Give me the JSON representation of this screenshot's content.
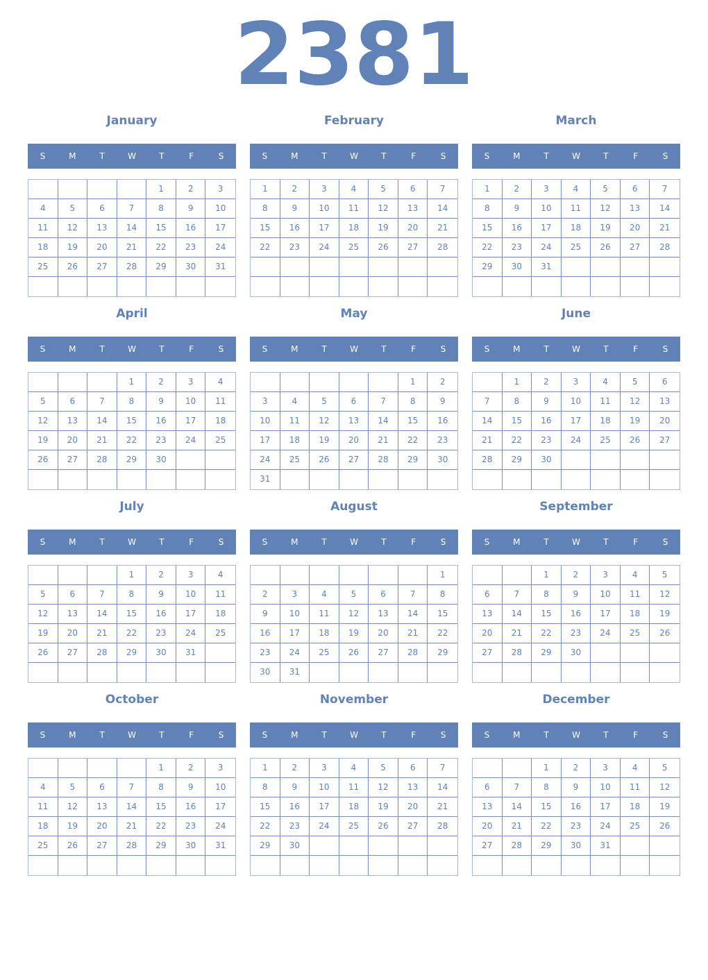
{
  "year": "2381",
  "weekdays": [
    "S",
    "M",
    "T",
    "W",
    "T",
    "F",
    "S"
  ],
  "accent_color": "#6182b7",
  "months": [
    {
      "name": "January",
      "weeks": [
        [
          null,
          null,
          null,
          null,
          1,
          2,
          3
        ],
        [
          4,
          5,
          6,
          7,
          8,
          9,
          10
        ],
        [
          11,
          12,
          13,
          14,
          15,
          16,
          17
        ],
        [
          18,
          19,
          20,
          21,
          22,
          23,
          24
        ],
        [
          25,
          26,
          27,
          28,
          29,
          30,
          31
        ],
        [
          null,
          null,
          null,
          null,
          null,
          null,
          null
        ]
      ]
    },
    {
      "name": "February",
      "weeks": [
        [
          1,
          2,
          3,
          4,
          5,
          6,
          7
        ],
        [
          8,
          9,
          10,
          11,
          12,
          13,
          14
        ],
        [
          15,
          16,
          17,
          18,
          19,
          20,
          21
        ],
        [
          22,
          23,
          24,
          25,
          26,
          27,
          28
        ],
        [
          null,
          null,
          null,
          null,
          null,
          null,
          null
        ],
        [
          null,
          null,
          null,
          null,
          null,
          null,
          null
        ]
      ]
    },
    {
      "name": "March",
      "weeks": [
        [
          1,
          2,
          3,
          4,
          5,
          6,
          7
        ],
        [
          8,
          9,
          10,
          11,
          12,
          13,
          14
        ],
        [
          15,
          16,
          17,
          18,
          19,
          20,
          21
        ],
        [
          22,
          23,
          24,
          25,
          26,
          27,
          28
        ],
        [
          29,
          30,
          31,
          null,
          null,
          null,
          null
        ],
        [
          null,
          null,
          null,
          null,
          null,
          null,
          null
        ]
      ]
    },
    {
      "name": "April",
      "weeks": [
        [
          null,
          null,
          null,
          1,
          2,
          3,
          4
        ],
        [
          5,
          6,
          7,
          8,
          9,
          10,
          11
        ],
        [
          12,
          13,
          14,
          15,
          16,
          17,
          18
        ],
        [
          19,
          20,
          21,
          22,
          23,
          24,
          25
        ],
        [
          26,
          27,
          28,
          29,
          30,
          null,
          null
        ],
        [
          null,
          null,
          null,
          null,
          null,
          null,
          null
        ]
      ]
    },
    {
      "name": "May",
      "weeks": [
        [
          null,
          null,
          null,
          null,
          null,
          1,
          2
        ],
        [
          3,
          4,
          5,
          6,
          7,
          8,
          9
        ],
        [
          10,
          11,
          12,
          13,
          14,
          15,
          16
        ],
        [
          17,
          18,
          19,
          20,
          21,
          22,
          23
        ],
        [
          24,
          25,
          26,
          27,
          28,
          29,
          30
        ],
        [
          31,
          null,
          null,
          null,
          null,
          null,
          null
        ]
      ]
    },
    {
      "name": "June",
      "weeks": [
        [
          null,
          1,
          2,
          3,
          4,
          5,
          6
        ],
        [
          7,
          8,
          9,
          10,
          11,
          12,
          13
        ],
        [
          14,
          15,
          16,
          17,
          18,
          19,
          20
        ],
        [
          21,
          22,
          23,
          24,
          25,
          26,
          27
        ],
        [
          28,
          29,
          30,
          null,
          null,
          null,
          null
        ],
        [
          null,
          null,
          null,
          null,
          null,
          null,
          null
        ]
      ]
    },
    {
      "name": "July",
      "weeks": [
        [
          null,
          null,
          null,
          1,
          2,
          3,
          4
        ],
        [
          5,
          6,
          7,
          8,
          9,
          10,
          11
        ],
        [
          12,
          13,
          14,
          15,
          16,
          17,
          18
        ],
        [
          19,
          20,
          21,
          22,
          23,
          24,
          25
        ],
        [
          26,
          27,
          28,
          29,
          30,
          31,
          null
        ],
        [
          null,
          null,
          null,
          null,
          null,
          null,
          null
        ]
      ]
    },
    {
      "name": "August",
      "weeks": [
        [
          null,
          null,
          null,
          null,
          null,
          null,
          1
        ],
        [
          2,
          3,
          4,
          5,
          6,
          7,
          8
        ],
        [
          9,
          10,
          11,
          12,
          13,
          14,
          15
        ],
        [
          16,
          17,
          18,
          19,
          20,
          21,
          22
        ],
        [
          23,
          24,
          25,
          26,
          27,
          28,
          29
        ],
        [
          30,
          31,
          null,
          null,
          null,
          null,
          null
        ]
      ]
    },
    {
      "name": "September",
      "weeks": [
        [
          null,
          null,
          1,
          2,
          3,
          4,
          5
        ],
        [
          6,
          7,
          8,
          9,
          10,
          11,
          12
        ],
        [
          13,
          14,
          15,
          16,
          17,
          18,
          19
        ],
        [
          20,
          21,
          22,
          23,
          24,
          25,
          26
        ],
        [
          27,
          28,
          29,
          30,
          null,
          null,
          null
        ],
        [
          null,
          null,
          null,
          null,
          null,
          null,
          null
        ]
      ]
    },
    {
      "name": "October",
      "weeks": [
        [
          null,
          null,
          null,
          null,
          1,
          2,
          3
        ],
        [
          4,
          5,
          6,
          7,
          8,
          9,
          10
        ],
        [
          11,
          12,
          13,
          14,
          15,
          16,
          17
        ],
        [
          18,
          19,
          20,
          21,
          22,
          23,
          24
        ],
        [
          25,
          26,
          27,
          28,
          29,
          30,
          31
        ],
        [
          null,
          null,
          null,
          null,
          null,
          null,
          null
        ]
      ]
    },
    {
      "name": "November",
      "weeks": [
        [
          1,
          2,
          3,
          4,
          5,
          6,
          7
        ],
        [
          8,
          9,
          10,
          11,
          12,
          13,
          14
        ],
        [
          15,
          16,
          17,
          18,
          19,
          20,
          21
        ],
        [
          22,
          23,
          24,
          25,
          26,
          27,
          28
        ],
        [
          29,
          30,
          null,
          null,
          null,
          null,
          null
        ],
        [
          null,
          null,
          null,
          null,
          null,
          null,
          null
        ]
      ]
    },
    {
      "name": "December",
      "weeks": [
        [
          null,
          null,
          1,
          2,
          3,
          4,
          5
        ],
        [
          6,
          7,
          8,
          9,
          10,
          11,
          12
        ],
        [
          13,
          14,
          15,
          16,
          17,
          18,
          19
        ],
        [
          20,
          21,
          22,
          23,
          24,
          25,
          26
        ],
        [
          27,
          28,
          29,
          30,
          31,
          null,
          null
        ],
        [
          null,
          null,
          null,
          null,
          null,
          null,
          null
        ]
      ]
    }
  ]
}
